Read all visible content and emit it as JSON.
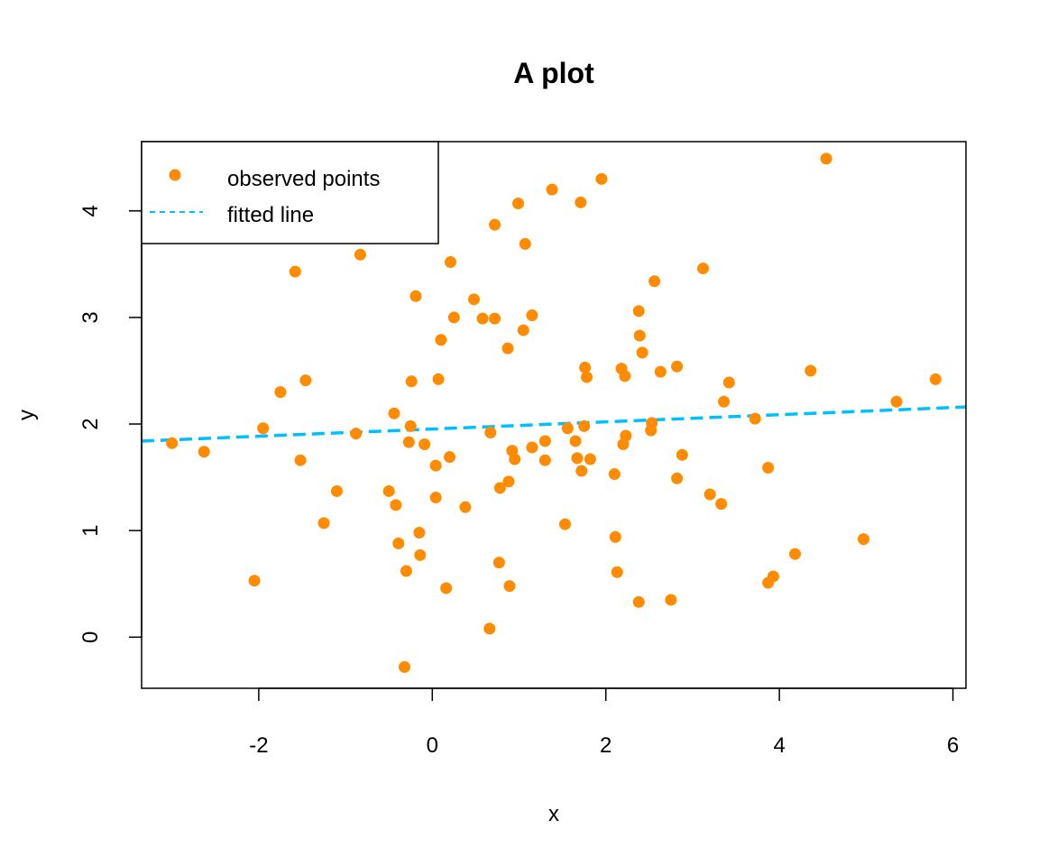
{
  "chart_data": {
    "type": "scatter",
    "title": "A plot",
    "xlabel": "x",
    "ylabel": "y",
    "xlim": [
      -3.35,
      6.15
    ],
    "ylim": [
      -0.48,
      4.65
    ],
    "xticks": [
      -2,
      0,
      2,
      4,
      6
    ],
    "yticks": [
      0,
      1,
      2,
      3,
      4
    ],
    "xtick_labels": [
      "-2",
      "0",
      "2",
      "4",
      "6"
    ],
    "ytick_labels": [
      "0",
      "1",
      "2",
      "3",
      "4"
    ],
    "grid": false,
    "legend": {
      "position": "top-left",
      "entries": [
        {
          "label": "observed points",
          "kind": "point",
          "color": "#FF8C00"
        },
        {
          "label": "fitted line",
          "kind": "dashed-line",
          "color": "#00BFFF"
        }
      ]
    },
    "series": [
      {
        "name": "observed points",
        "kind": "points",
        "color": "#FF8C00",
        "x": [
          -3.0,
          -2.63,
          -2.05,
          -1.95,
          -1.75,
          -1.58,
          -1.52,
          -1.46,
          -1.25,
          -1.1,
          -0.88,
          -0.83,
          -0.5,
          -0.44,
          -0.42,
          -0.39,
          -0.32,
          -0.3,
          -0.27,
          -0.25,
          -0.24,
          -0.19,
          -0.15,
          -0.14,
          -0.09,
          0.04,
          0.04,
          0.07,
          0.1,
          0.16,
          0.2,
          0.21,
          0.25,
          0.38,
          0.48,
          0.58,
          0.66,
          0.67,
          0.72,
          0.72,
          0.77,
          0.78,
          0.87,
          0.88,
          0.89,
          0.92,
          0.95,
          0.99,
          1.05,
          1.07,
          1.15,
          1.15,
          1.3,
          1.3,
          1.38,
          1.53,
          1.56,
          1.65,
          1.67,
          1.71,
          1.72,
          1.75,
          1.76,
          1.78,
          1.82,
          1.95,
          2.1,
          2.11,
          2.13,
          2.18,
          2.2,
          2.22,
          2.23,
          2.38,
          2.38,
          2.39,
          2.42,
          2.52,
          2.53,
          2.56,
          2.63,
          2.75,
          2.82,
          2.82,
          2.88,
          3.12,
          3.2,
          3.33,
          3.36,
          3.42,
          3.72,
          3.87,
          3.87,
          3.93,
          4.18,
          4.36,
          4.54,
          4.97,
          5.35,
          5.8
        ],
        "y": [
          1.82,
          1.74,
          0.53,
          1.96,
          2.3,
          3.43,
          1.66,
          2.41,
          1.07,
          1.37,
          1.91,
          3.59,
          1.37,
          2.1,
          1.24,
          0.88,
          -0.28,
          0.62,
          1.83,
          1.98,
          2.4,
          3.2,
          0.98,
          0.77,
          1.81,
          1.61,
          1.31,
          2.42,
          2.79,
          0.46,
          1.69,
          3.52,
          3.0,
          1.22,
          3.17,
          2.99,
          0.08,
          1.92,
          3.87,
          2.99,
          0.7,
          1.4,
          2.71,
          1.46,
          0.48,
          1.75,
          1.67,
          4.07,
          2.88,
          3.69,
          1.78,
          3.02,
          1.66,
          1.84,
          4.2,
          1.06,
          1.96,
          1.84,
          1.68,
          4.08,
          1.56,
          1.98,
          2.53,
          2.44,
          1.67,
          4.3,
          1.53,
          0.94,
          0.61,
          2.52,
          1.81,
          2.45,
          1.89,
          3.06,
          0.33,
          2.83,
          2.67,
          1.94,
          2.01,
          3.34,
          2.49,
          0.35,
          2.54,
          1.49,
          1.71,
          3.46,
          1.34,
          1.25,
          2.21,
          2.39,
          2.05,
          1.59,
          0.51,
          0.57,
          0.78,
          2.5,
          4.49,
          0.92,
          2.21,
          2.42
        ]
      },
      {
        "name": "fitted line",
        "kind": "dashed-line",
        "color": "#00BFFF",
        "x": [
          -3.35,
          6.15
        ],
        "y": [
          1.84,
          2.16
        ]
      }
    ]
  }
}
